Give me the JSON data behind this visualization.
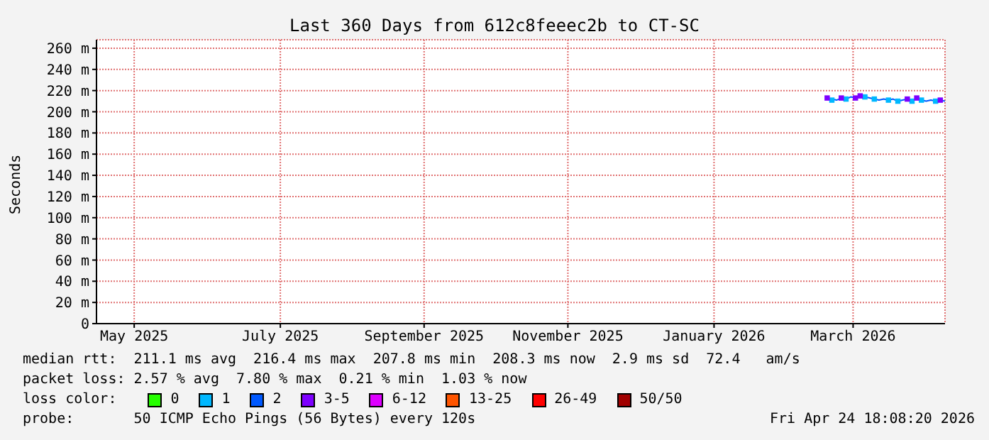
{
  "chart_data": {
    "type": "line",
    "title": "Last 360 Days from 612c8feeec2b to CT-SC",
    "ylabel": "Seconds",
    "x": [
      "2026-03-05",
      "2026-03-07",
      "2026-03-09",
      "2026-03-11",
      "2026-03-13",
      "2026-03-15",
      "2026-03-17",
      "2026-03-19",
      "2026-03-21",
      "2026-03-23",
      "2026-03-25",
      "2026-03-27",
      "2026-03-29",
      "2026-03-31",
      "2026-04-02",
      "2026-04-04",
      "2026-04-06",
      "2026-04-08",
      "2026-04-10",
      "2026-04-12",
      "2026-04-14",
      "2026-04-16",
      "2026-04-18",
      "2026-04-20",
      "2026-04-22",
      "2026-04-24"
    ],
    "series": [
      {
        "color": "#0059ff",
        "values": [
          213,
          212,
          211,
          213,
          212,
          214,
          213,
          215,
          214,
          213,
          212,
          211,
          212,
          211,
          212,
          210,
          211,
          212,
          210,
          213,
          211,
          210,
          211,
          210,
          211,
          210
        ]
      },
      {
        "type": "scatter",
        "marker": "square",
        "name": "0",
        "color": "#26ff00",
        "values": [
          null,
          null,
          null,
          null,
          null,
          null,
          null,
          null,
          null,
          null,
          null,
          null,
          null,
          null,
          null,
          null,
          null,
          null,
          null,
          null,
          null,
          null,
          null,
          null,
          null,
          null
        ]
      },
      {
        "type": "scatter",
        "marker": "square",
        "name": "1",
        "color": "#00b8ff",
        "values": [
          null,
          211,
          null,
          null,
          212,
          null,
          null,
          null,
          214,
          null,
          212,
          null,
          null,
          211,
          null,
          210,
          null,
          null,
          210,
          null,
          211,
          null,
          null,
          210,
          null,
          null
        ]
      },
      {
        "type": "scatter",
        "marker": "square",
        "name": "2",
        "color": "#0059ff",
        "values": [
          null,
          null,
          null,
          null,
          null,
          null,
          null,
          null,
          null,
          null,
          null,
          null,
          null,
          null,
          null,
          null,
          null,
          null,
          null,
          null,
          null,
          null,
          null,
          null,
          null,
          null
        ]
      },
      {
        "type": "scatter",
        "marker": "square",
        "name": "3-5",
        "color": "#7e00ff",
        "values": [
          213,
          null,
          null,
          213,
          null,
          null,
          213,
          215,
          null,
          null,
          null,
          null,
          null,
          null,
          null,
          null,
          null,
          212,
          null,
          213,
          null,
          null,
          null,
          null,
          211,
          null
        ]
      },
      {
        "type": "scatter",
        "marker": "square",
        "name": "6-12",
        "color": "#dd00ff",
        "values": [
          null,
          null,
          null,
          null,
          null,
          null,
          null,
          null,
          null,
          null,
          null,
          null,
          null,
          null,
          null,
          null,
          null,
          null,
          null,
          null,
          null,
          null,
          null,
          null,
          null,
          null
        ]
      },
      {
        "type": "scatter",
        "marker": "square",
        "name": "13-25",
        "color": "#ff5500",
        "values": [
          null,
          null,
          null,
          null,
          null,
          null,
          null,
          null,
          null,
          null,
          null,
          null,
          null,
          null,
          null,
          null,
          null,
          null,
          null,
          null,
          null,
          null,
          null,
          null,
          null,
          null
        ]
      },
      {
        "type": "scatter",
        "marker": "square",
        "name": "26-49",
        "color": "#ff0000",
        "values": [
          null,
          null,
          null,
          null,
          null,
          null,
          null,
          null,
          null,
          null,
          null,
          null,
          null,
          null,
          null,
          null,
          null,
          null,
          null,
          null,
          null,
          null,
          null,
          null,
          null,
          null
        ]
      },
      {
        "type": "scatter",
        "marker": "square",
        "name": "50/50",
        "color": "#a10000",
        "values": [
          null,
          null,
          null,
          null,
          null,
          null,
          null,
          null,
          null,
          null,
          null,
          null,
          null,
          null,
          null,
          null,
          null,
          null,
          null,
          null,
          null,
          null,
          null,
          null,
          null,
          null
        ]
      }
    ],
    "marker": "none",
    "legend": "bottom",
    "legend_title": "loss color:",
    "grid": true,
    "xlim": [
      "2025-04-29",
      "2026-04-24"
    ],
    "xticks": [
      {
        "value": "2025-05-15",
        "label": "May 2025"
      },
      {
        "value": "2025-07-16",
        "label": "July 2025"
      },
      {
        "value": "2025-09-15",
        "label": "September 2025"
      },
      {
        "value": "2025-11-15",
        "label": "November 2025"
      },
      {
        "value": "2026-01-16",
        "label": "January 2026"
      },
      {
        "value": "2026-03-16",
        "label": "March 2026"
      }
    ],
    "ylim": [
      0,
      268
    ],
    "yticks": [
      0,
      {
        "value": 20,
        "label": "20 m"
      },
      {
        "value": 40,
        "label": "40 m"
      },
      {
        "value": 60,
        "label": "60 m"
      },
      {
        "value": 80,
        "label": "80 m"
      },
      {
        "value": 100,
        "label": "100 m"
      },
      {
        "value": 120,
        "label": "120 m"
      },
      {
        "value": 140,
        "label": "140 m"
      },
      {
        "value": 160,
        "label": "160 m"
      },
      {
        "value": 180,
        "label": "180 m"
      },
      {
        "value": 200,
        "label": "200 m"
      },
      {
        "value": 220,
        "label": "220 m"
      },
      {
        "value": 240,
        "label": "240 m"
      },
      {
        "value": 260,
        "label": "260 m"
      }
    ],
    "annotations": [
      "median rtt:  211.1 ms avg  216.4 ms max  207.8 ms min  208.3 ms now  2.9 ms sd  72.4   am/s",
      "packet loss: 2.57 % avg  7.80 % max  0.21 % min  1.03 % now",
      "probe:       50 ICMP Echo Pings (56 Bytes) every 120s",
      "Fri Apr 24 18:08:20 2026"
    ]
  }
}
